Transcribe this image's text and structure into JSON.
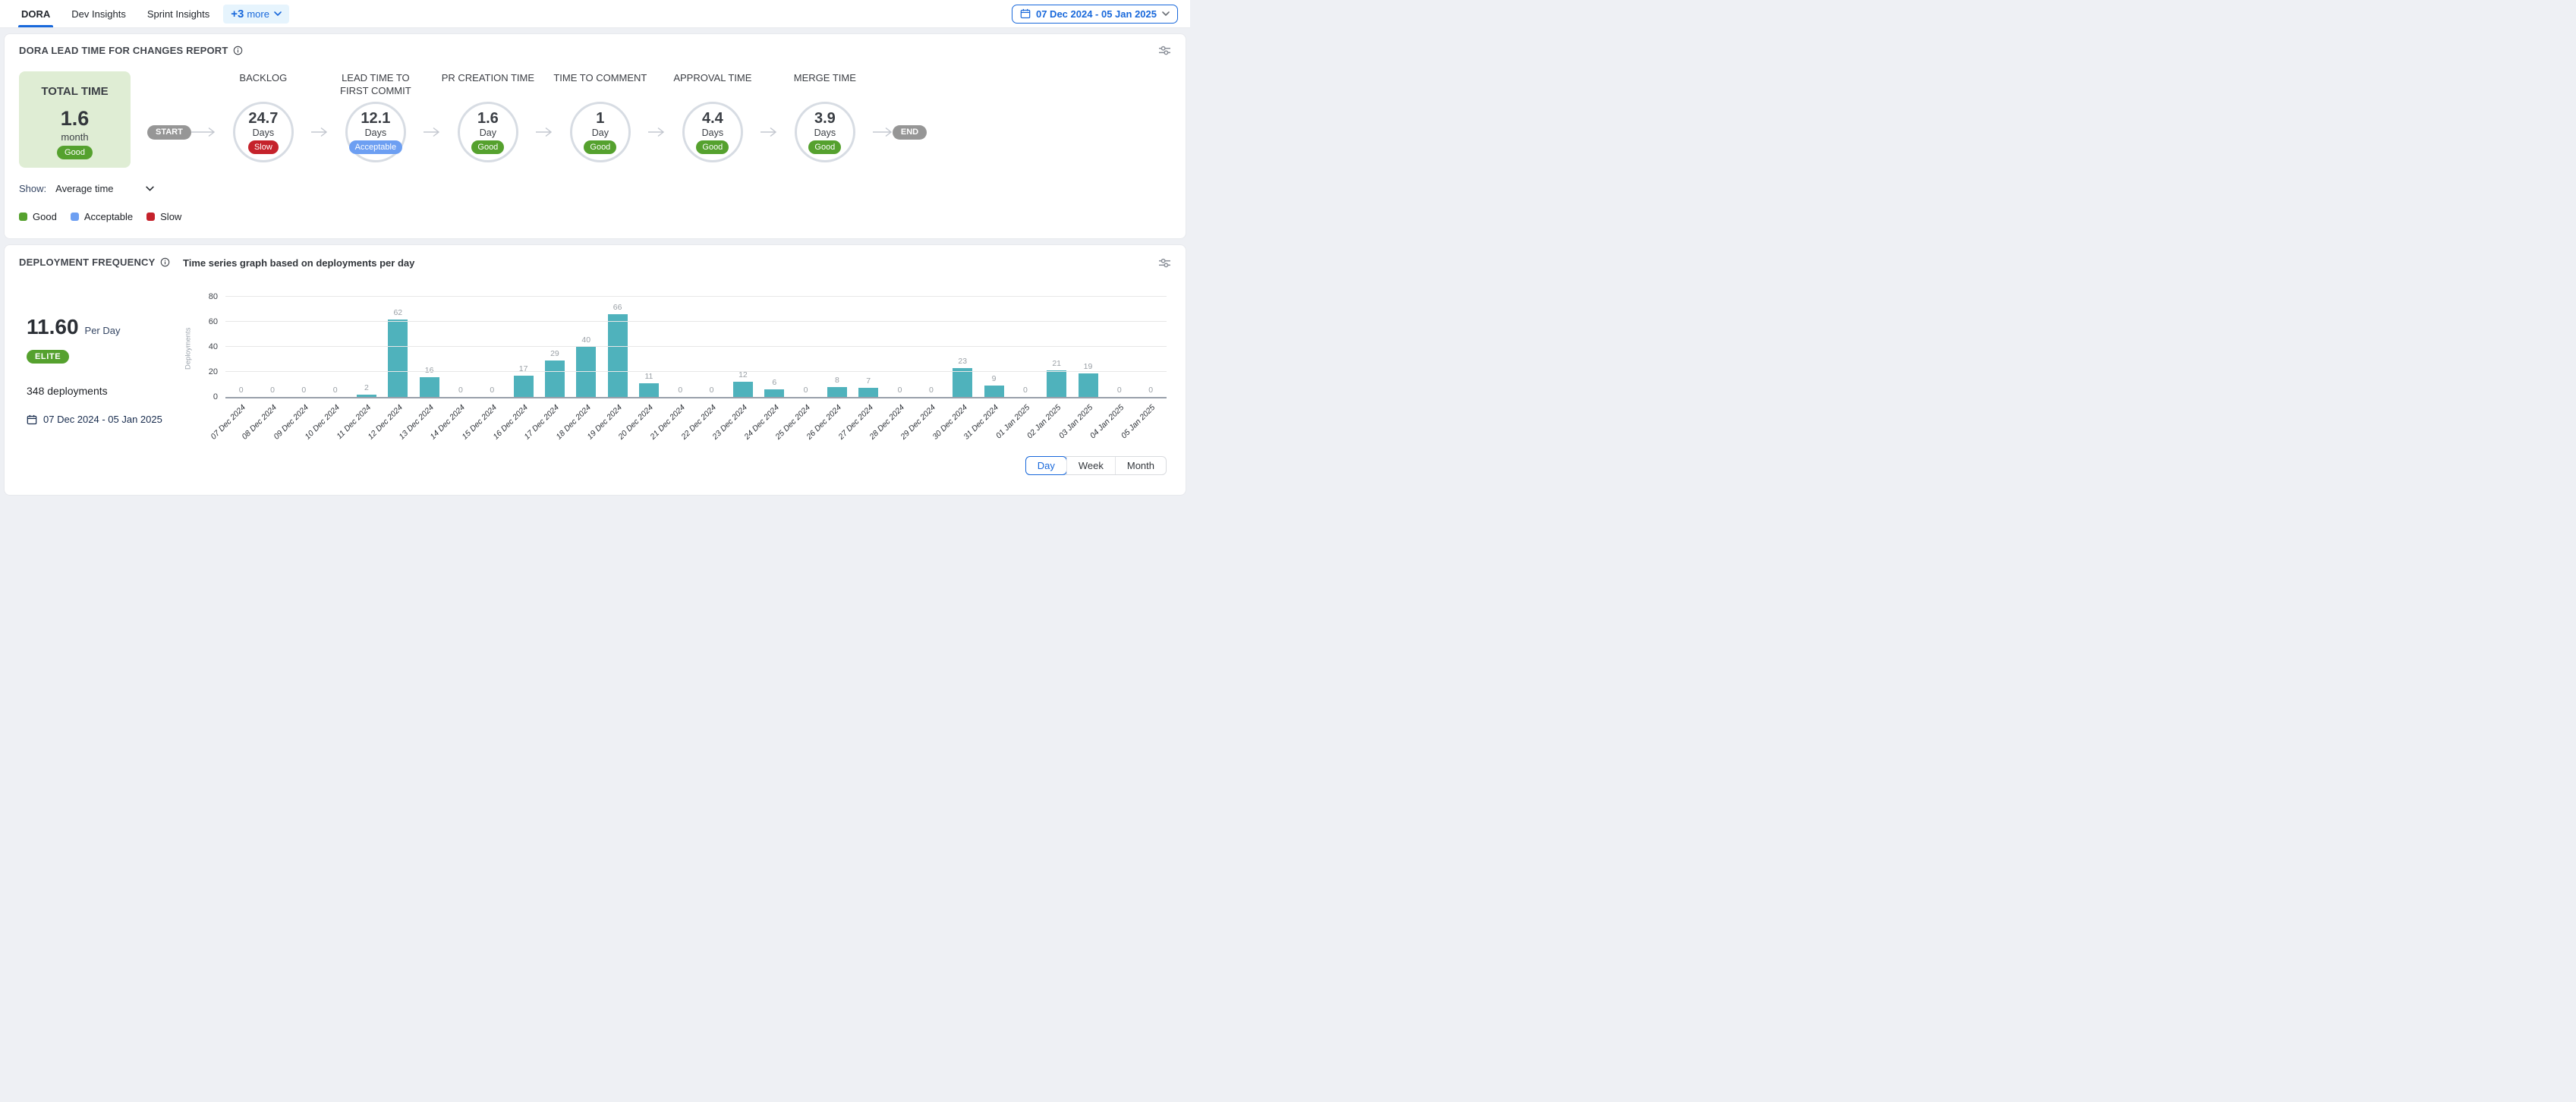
{
  "topbar": {
    "tabs": [
      {
        "label": "DORA",
        "active": true
      },
      {
        "label": "Dev Insights",
        "active": false
      },
      {
        "label": "Sprint Insights",
        "active": false
      }
    ],
    "more_label": "+3",
    "more_word": "more",
    "date_range": "07 Dec 2024 - 05 Jan 2025"
  },
  "colors": {
    "accent": "#1868db",
    "good": "#55a12e",
    "acceptable": "#6d9ff2",
    "slow": "#c5222b",
    "bar": "#4fb2bc",
    "pill_gray": "#969696",
    "total_card_bg": "#dfedd4"
  },
  "lead_time": {
    "title": "DORA LEAD TIME FOR CHANGES REPORT",
    "total": {
      "label": "TOTAL TIME",
      "value": "1.6",
      "unit": "month",
      "status": "Good"
    },
    "start_label": "START",
    "end_label": "END",
    "stages": [
      {
        "label": "BACKLOG",
        "value": "24.7",
        "unit": "Days",
        "status": "Slow"
      },
      {
        "label": "LEAD TIME TO FIRST COMMIT",
        "value": "12.1",
        "unit": "Days",
        "status": "Acceptable"
      },
      {
        "label": "PR CREATION TIME",
        "value": "1.6",
        "unit": "Day",
        "status": "Good"
      },
      {
        "label": "TIME TO COMMENT",
        "value": "1",
        "unit": "Day",
        "status": "Good"
      },
      {
        "label": "APPROVAL TIME",
        "value": "4.4",
        "unit": "Days",
        "status": "Good"
      },
      {
        "label": "MERGE TIME",
        "value": "3.9",
        "unit": "Days",
        "status": "Good"
      }
    ],
    "show_label": "Show:",
    "show_value": "Average time",
    "legend": [
      {
        "label": "Good",
        "status": "good"
      },
      {
        "label": "Acceptable",
        "status": "acceptable"
      },
      {
        "label": "Slow",
        "status": "slow"
      }
    ]
  },
  "deployment": {
    "title": "DEPLOYMENT FREQUENCY",
    "subtitle": "Time series graph based on deployments per day",
    "rate_value": "11.60",
    "rate_unit": "Per Day",
    "badge": "ELITE",
    "total_deployments": "348 deployments",
    "date_range": "07 Dec 2024 - 05 Jan 2025",
    "granularity": [
      {
        "label": "Day",
        "active": true
      },
      {
        "label": "Week",
        "active": false
      },
      {
        "label": "Month",
        "active": false
      }
    ]
  },
  "chart_data": {
    "type": "bar",
    "title": "Time series graph based on deployments per day",
    "xlabel": "",
    "ylabel": "Deployments",
    "ylim": [
      0,
      80
    ],
    "yticks": [
      0,
      20,
      40,
      60,
      80
    ],
    "grid": true,
    "bar_color": "#4fb2bc",
    "categories": [
      "07 Dec 2024",
      "08 Dec 2024",
      "09 Dec 2024",
      "10 Dec 2024",
      "11 Dec 2024",
      "12 Dec 2024",
      "13 Dec 2024",
      "14 Dec 2024",
      "15 Dec 2024",
      "16 Dec 2024",
      "17 Dec 2024",
      "18 Dec 2024",
      "19 Dec 2024",
      "20 Dec 2024",
      "21 Dec 2024",
      "22 Dec 2024",
      "23 Dec 2024",
      "24 Dec 2024",
      "25 Dec 2024",
      "26 Dec 2024",
      "27 Dec 2024",
      "28 Dec 2024",
      "29 Dec 2024",
      "30 Dec 2024",
      "31 Dec 2024",
      "01 Jan 2025",
      "02 Jan 2025",
      "03 Jan 2025",
      "04 Jan 2025",
      "05 Jan 2025"
    ],
    "values": [
      0,
      0,
      0,
      0,
      2,
      62,
      16,
      0,
      0,
      17,
      29,
      40,
      66,
      11,
      0,
      0,
      12,
      6,
      0,
      8,
      7,
      0,
      0,
      23,
      9,
      0,
      21,
      19,
      0,
      0
    ]
  }
}
